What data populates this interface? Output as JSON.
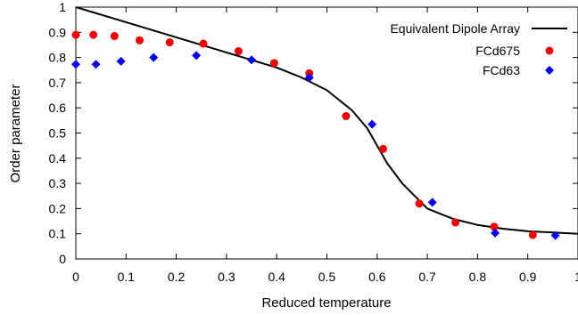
{
  "chart_data": {
    "type": "scatter",
    "title": "",
    "xlabel": "Reduced temperature",
    "ylabel": "Order parameter",
    "xlim": [
      0,
      1
    ],
    "ylim": [
      0,
      1
    ],
    "x_ticks": [
      "0",
      "0.1",
      "0.2",
      "0.3",
      "0.4",
      "0.5",
      "0.6",
      "0.7",
      "0.8",
      "0.9",
      "1"
    ],
    "y_ticks": [
      "0",
      "0.1",
      "0.2",
      "0.3",
      "0.4",
      "0.5",
      "0.6",
      "0.7",
      "0.8",
      "0.9",
      "1"
    ],
    "grid": false,
    "legend_position": "top-right",
    "series": [
      {
        "name": "Equivalent Dipole Array",
        "kind": "line",
        "color": "#000000",
        "x": [
          0,
          0.1,
          0.2,
          0.25,
          0.3,
          0.35,
          0.4,
          0.45,
          0.5,
          0.55,
          0.58,
          0.6,
          0.62,
          0.65,
          0.7,
          0.75,
          0.8,
          0.85,
          0.9,
          0.95,
          1
        ],
        "y": [
          1,
          0.94,
          0.88,
          0.85,
          0.82,
          0.79,
          0.76,
          0.72,
          0.67,
          0.59,
          0.52,
          0.45,
          0.38,
          0.3,
          0.2,
          0.16,
          0.135,
          0.12,
          0.11,
          0.105,
          0.1
        ]
      },
      {
        "name": "FCd675",
        "kind": "scatter",
        "marker": "circle",
        "color": "#ee0000",
        "x": [
          0,
          0.035,
          0.077,
          0.127,
          0.187,
          0.254,
          0.324,
          0.395,
          0.465,
          0.538,
          0.612,
          0.684,
          0.756,
          0.833,
          0.91
        ],
        "y": [
          0.89,
          0.89,
          0.885,
          0.868,
          0.86,
          0.855,
          0.825,
          0.778,
          0.737,
          0.567,
          0.437,
          0.22,
          0.145,
          0.128,
          0.095
        ]
      },
      {
        "name": "FCd63",
        "kind": "scatter",
        "marker": "diamond",
        "color": "#0000ee",
        "x": [
          0,
          0.04,
          0.09,
          0.155,
          0.24,
          0.35,
          0.465,
          0.59,
          0.71,
          0.835,
          0.955
        ],
        "y": [
          0.773,
          0.773,
          0.785,
          0.8,
          0.808,
          0.79,
          0.72,
          0.535,
          0.225,
          0.103,
          0.093
        ]
      }
    ]
  }
}
